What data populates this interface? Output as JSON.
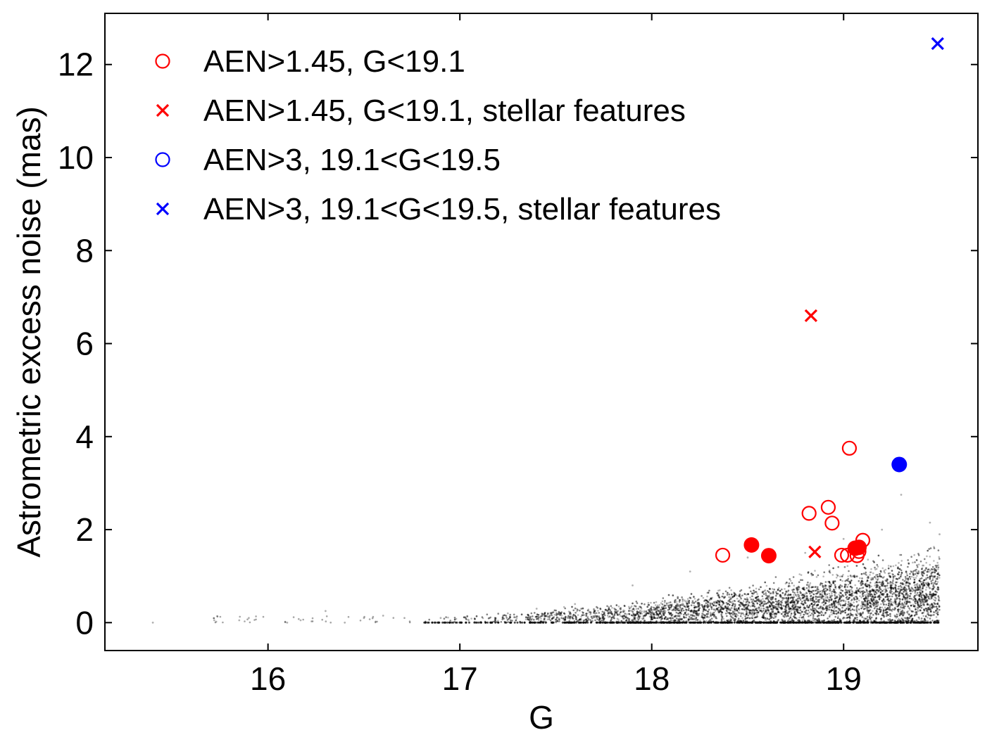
{
  "chart_data": {
    "type": "scatter",
    "xlabel": "G",
    "ylabel": "Astrometric excess noise (mas)",
    "xlim": [
      15.15,
      19.7
    ],
    "ylim": [
      -0.6,
      13.1
    ],
    "xticks": [
      16,
      17,
      18,
      19
    ],
    "yticks": [
      0,
      2,
      4,
      6,
      8,
      10,
      12
    ],
    "legend_position": "top-left",
    "grid": false,
    "colors": {
      "red": "#ff0000",
      "blue": "#0000ff",
      "background": "#000000"
    },
    "series": [
      {
        "name": "AEN>1.45, G<19.1",
        "marker": "open-circle",
        "color": "#ff0000",
        "points": [
          [
            18.37,
            1.45
          ],
          [
            18.82,
            2.35
          ],
          [
            18.92,
            2.48
          ],
          [
            18.94,
            2.14
          ],
          [
            18.99,
            1.45
          ],
          [
            19.02,
            1.45
          ],
          [
            19.03,
            3.75
          ],
          [
            19.07,
            1.44
          ],
          [
            19.08,
            1.53
          ],
          [
            19.1,
            1.77
          ]
        ]
      },
      {
        "name": "AEN>1.45, G<19.1, stellar features",
        "marker": "x",
        "color": "#ff0000",
        "points": [
          [
            18.83,
            6.6
          ],
          [
            18.85,
            1.52
          ]
        ]
      },
      {
        "name": "AEN>3, 19.1<G<19.5",
        "marker": "open-circle",
        "color": "#0000ff",
        "points": []
      },
      {
        "name": "AEN>3, 19.1<G<19.5, stellar features",
        "marker": "x",
        "color": "#0000ff",
        "points": [
          [
            19.49,
            12.45
          ]
        ]
      },
      {
        "marker": "filled-circle",
        "color": "#ff0000",
        "legend": false,
        "points": [
          [
            18.52,
            1.67
          ],
          [
            18.61,
            1.44
          ],
          [
            19.06,
            1.6
          ],
          [
            19.08,
            1.62
          ]
        ]
      },
      {
        "marker": "filled-circle",
        "color": "#0000ff",
        "legend": false,
        "points": [
          [
            19.29,
            3.4
          ]
        ]
      },
      {
        "marker": "dot",
        "color": "#000000",
        "legend": false,
        "description_of_distribution": "dense background cloud",
        "points": [
          [
            15.4,
            0.0
          ],
          [
            15.72,
            0.05
          ],
          [
            15.73,
            0.02
          ],
          [
            15.85,
            0.05
          ],
          [
            15.9,
            0.1
          ],
          [
            16.1,
            0.0
          ],
          [
            16.17,
            0.05
          ],
          [
            16.3,
            0.25
          ],
          [
            16.4,
            0.0
          ],
          [
            16.5,
            0.1
          ],
          [
            16.6,
            0.15
          ],
          [
            16.9,
            0.1
          ],
          [
            17.25,
            0.2
          ],
          [
            17.4,
            0.3
          ],
          [
            17.6,
            0.4
          ],
          [
            17.9,
            0.8
          ],
          [
            18.2,
            1.1
          ],
          [
            18.5,
            1.4
          ],
          [
            18.8,
            1.5
          ],
          [
            19.0,
            1.8
          ],
          [
            19.2,
            2.0
          ],
          [
            19.3,
            2.75
          ],
          [
            19.45,
            2.15
          ],
          [
            19.5,
            1.9
          ]
        ]
      }
    ]
  }
}
